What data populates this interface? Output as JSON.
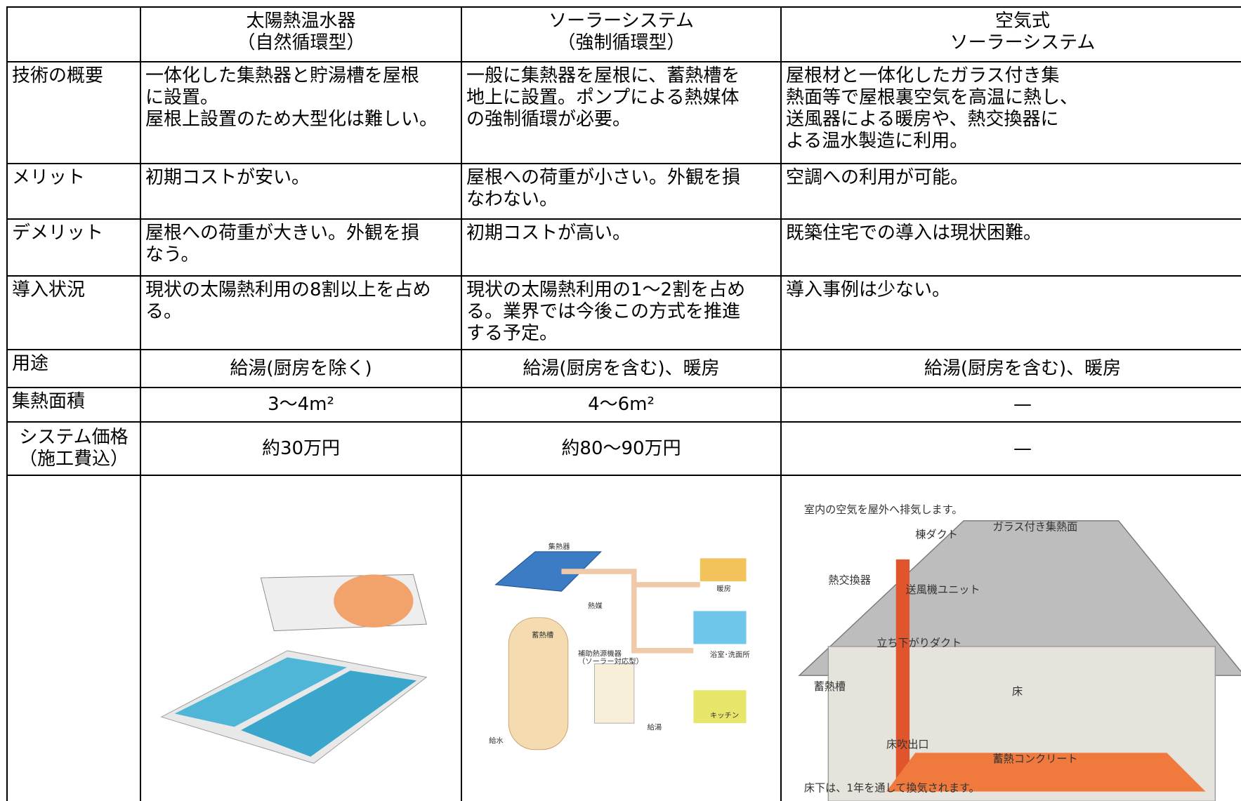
{
  "table": {
    "header": [
      [
        "太陽熱温水器",
        "（自然循環型）"
      ],
      [
        "ソーラーシステム",
        "（強制循環型）"
      ],
      [
        "空気式",
        "ソーラーシステム"
      ]
    ],
    "rows": [
      {
        "label": [
          "技術の概要"
        ],
        "cells": [
          [
            "一体化した集熱器と貯湯槽を屋根",
            "に設置。",
            "屋根上設置のため大型化は難しい。"
          ],
          [
            "一般に集熱器を屋根に、蓄熱槽を",
            "地上に設置。ポンプによる熱媒体",
            "の強制循環が必要。"
          ],
          [
            "屋根材と一体化したガラス付き集",
            "熱面等で屋根裏空気を高温に熱し、",
            "送風器による暖房や、熱交換器に",
            "よる温水製造に利用。"
          ]
        ]
      },
      {
        "label": [
          "メリット"
        ],
        "cells": [
          [
            "初期コストが安い。"
          ],
          [
            "屋根への荷重が小さい。外観を損",
            "なわない。"
          ],
          [
            "空調への利用が可能。"
          ]
        ]
      },
      {
        "label": [
          "デメリット"
        ],
        "cells": [
          [
            "屋根への荷重が大きい。外観を損",
            "なう。"
          ],
          [
            "初期コストが高い。"
          ],
          [
            "既築住宅での導入は現状困難。"
          ]
        ]
      },
      {
        "label": [
          "導入状況"
        ],
        "cells": [
          [
            "現状の太陽熱利用の8割以上を占め",
            "る。"
          ],
          [
            "現状の太陽熱利用の1〜2割を占め",
            "る。業界では今後この方式を推進",
            "する予定。"
          ],
          [
            "導入事例は少ない。"
          ]
        ]
      },
      {
        "label": [
          "用途"
        ],
        "cells": [
          [
            "給湯(厨房を除く)"
          ],
          [
            "給湯(厨房を含む)、暖房"
          ],
          [
            "給湯(厨房を含む)、暖房"
          ]
        ]
      },
      {
        "label": [
          "集熱面積"
        ],
        "cells": [
          [
            "3〜4m²"
          ],
          [
            "4〜6m²"
          ],
          [
            "—"
          ]
        ]
      },
      {
        "label": [
          "システム価格",
          "（施工費込）"
        ],
        "cells": [
          [
            "約30万円"
          ],
          [
            "約80〜90万円"
          ],
          [
            "—"
          ]
        ]
      }
    ],
    "illustrations": [
      {
        "labels": []
      },
      {
        "labels": [
          "集熱器",
          "熱媒",
          "蓄熱槽",
          "補助熱源機器",
          "（ソーラー対応型）",
          "暖房",
          "浴室･洗面所",
          "キッチン",
          "給湯",
          "給水"
        ]
      },
      {
        "labels": [
          "室内の空気を屋外へ排気します。",
          "ガラス付き集熱面",
          "棟ダクト",
          "熱交換器",
          "送風機ユニット",
          "立ち下がりダクト",
          "蓄熱槽",
          "床",
          "床吹出口",
          "蓄熱コンクリート",
          "床下は、1年を通して換気されます。"
        ]
      }
    ]
  }
}
